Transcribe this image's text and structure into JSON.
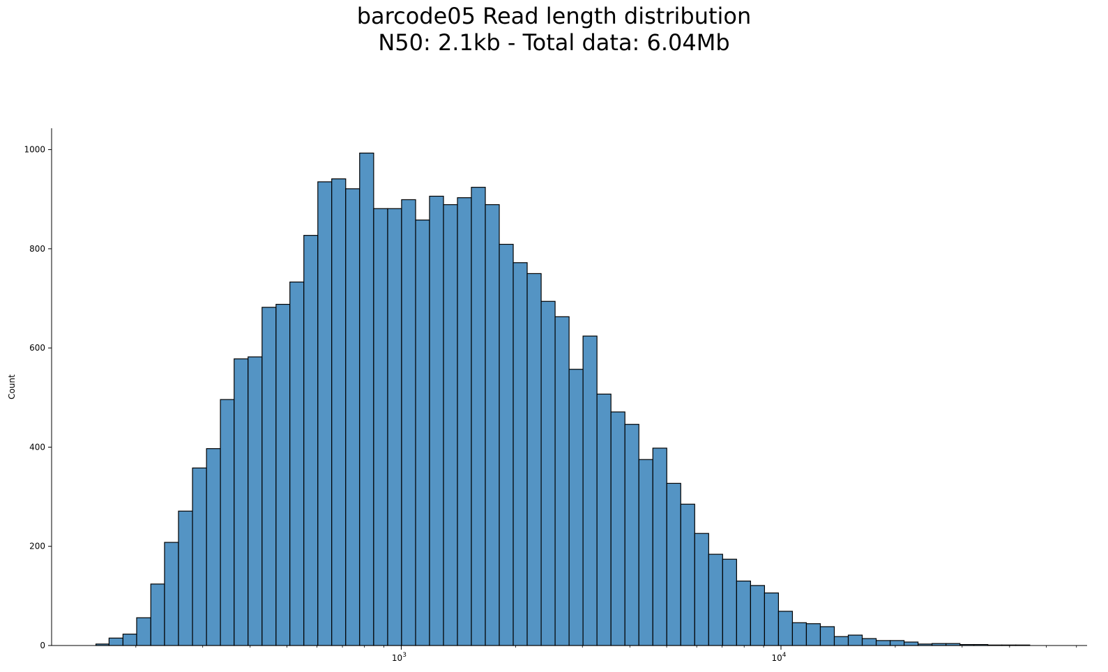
{
  "chart_data": {
    "type": "bar",
    "title_line1": "barcode05 Read length distribution",
    "title_line2": "N50: 2.1kb - Total data: 6.04Mb",
    "xlabel": "",
    "ylabel": "Count",
    "x_scale": "log",
    "xlim": [
      120,
      64000
    ],
    "ylim": [
      0,
      1043
    ],
    "grid": false,
    "bar_color": "#5494c4",
    "edge_color": "#000000",
    "x_ticks": [
      {
        "value": 1000,
        "base": "10",
        "exp": "3"
      },
      {
        "value": 10000,
        "base": "10",
        "exp": "4"
      }
    ],
    "y_ticks": [
      {
        "value": 0,
        "label": "0"
      },
      {
        "value": 200,
        "label": "200"
      },
      {
        "value": 400,
        "label": "400"
      },
      {
        "value": 600,
        "label": "600"
      },
      {
        "value": 800,
        "label": "800"
      },
      {
        "value": 1000,
        "label": "1000"
      }
    ],
    "bin_edges": [
      157,
      170,
      185,
      201,
      219,
      238,
      259,
      282,
      307,
      334,
      363,
      395,
      430,
      468,
      509,
      554,
      603,
      656,
      714,
      777,
      846,
      921,
      1002,
      1091,
      1187,
      1292,
      1406,
      1530,
      1665,
      1812,
      1972,
      2146,
      2336,
      2542,
      2767,
      3011,
      3277,
      3567,
      3882,
      4225,
      4598,
      5004,
      5446,
      5927,
      6451,
      7021,
      7641,
      8316,
      9051,
      9850,
      10720,
      11667,
      12698,
      13820,
      15041,
      16369,
      17815,
      19389,
      21102,
      22966,
      24995,
      27203,
      29606,
      32221,
      35068,
      38166,
      41538,
      45207,
      49201
    ],
    "values": [
      3,
      15,
      23,
      56,
      124,
      208,
      271,
      358,
      397,
      496,
      578,
      582,
      682,
      688,
      733,
      827,
      935,
      941,
      921,
      993,
      881,
      881,
      899,
      858,
      906,
      889,
      903,
      924,
      889,
      809,
      772,
      750,
      694,
      663,
      557,
      624,
      507,
      471,
      446,
      375,
      398,
      327,
      285,
      226,
      184,
      174,
      130,
      121,
      106,
      69,
      46,
      44,
      38,
      18,
      21,
      14,
      10,
      10,
      7,
      3,
      4,
      4,
      2,
      2,
      1,
      1,
      1,
      0
    ]
  }
}
